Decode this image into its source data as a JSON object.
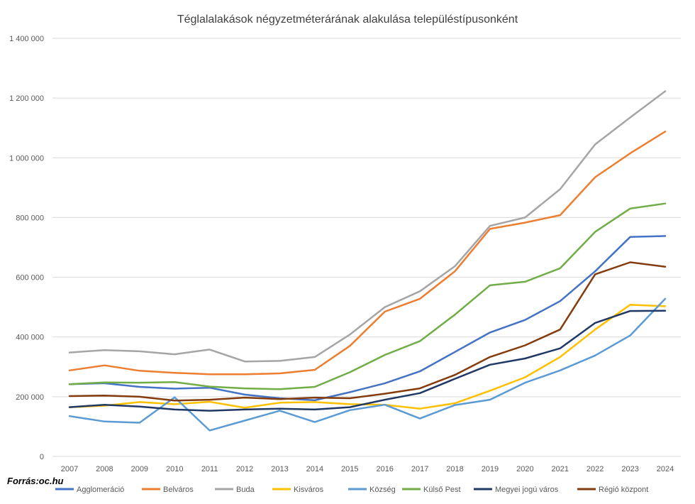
{
  "chart_data": {
    "type": "line",
    "title": "Téglalalakások négyzetméterárának  alakulása településtípusonként",
    "source": "Forrás:oc.hu",
    "ylim": [
      0,
      1400000
    ],
    "yticks": [
      0,
      200000,
      400000,
      600000,
      800000,
      1000000,
      1200000,
      1400000
    ],
    "ytick_labels": [
      "0",
      "200 000",
      "400 000",
      "600 000",
      "800 000",
      "1 000 000",
      "1 200 000",
      "1 400 000"
    ],
    "grid": true,
    "legend_position": "bottom",
    "x": [
      "2007",
      "2008",
      "2009",
      "2010",
      "2011",
      "2012",
      "2013",
      "2014",
      "2015",
      "2016",
      "2017",
      "2018",
      "2019",
      "2020",
      "2021",
      "2022",
      "2023",
      "2024"
    ],
    "series": [
      {
        "name": "Agglomeráció",
        "color": "#4472C4",
        "values": [
          242000,
          245000,
          233000,
          227000,
          230000,
          207000,
          195000,
          188000,
          215000,
          245000,
          285000,
          350000,
          415000,
          457000,
          520000,
          620000,
          735000,
          738000
        ]
      },
      {
        "name": "Belváros",
        "color": "#ED7D31",
        "values": [
          288000,
          305000,
          287000,
          280000,
          275000,
          275000,
          278000,
          290000,
          370000,
          485000,
          528000,
          620000,
          762000,
          783000,
          808000,
          935000,
          1015000,
          1088000
        ]
      },
      {
        "name": "Buda",
        "color": "#A5A5A5",
        "values": [
          348000,
          356000,
          352000,
          342000,
          358000,
          318000,
          320000,
          333000,
          408000,
          500000,
          553000,
          637000,
          772000,
          800000,
          895000,
          1045000,
          1135000,
          1223000
        ]
      },
      {
        "name": "Kisváros",
        "color": "#FFC000",
        "values": [
          165000,
          170000,
          182000,
          175000,
          183000,
          163000,
          180000,
          182000,
          175000,
          173000,
          160000,
          178000,
          220000,
          265000,
          333000,
          425000,
          508000,
          503000
        ]
      },
      {
        "name": "Község",
        "color": "#5B9BD5",
        "values": [
          135000,
          117000,
          113000,
          198000,
          87000,
          120000,
          153000,
          115000,
          155000,
          173000,
          127000,
          172000,
          190000,
          247000,
          288000,
          338000,
          405000,
          528000
        ]
      },
      {
        "name": "Külső Pest",
        "color": "#70AD47",
        "values": [
          242000,
          248000,
          247000,
          249000,
          234000,
          228000,
          225000,
          233000,
          282000,
          340000,
          386000,
          475000,
          573000,
          585000,
          630000,
          752000,
          830000,
          847000
        ]
      },
      {
        "name": "Megyei jogú város",
        "color": "#1F3864",
        "values": [
          165000,
          173000,
          167000,
          157000,
          153000,
          157000,
          160000,
          157000,
          165000,
          190000,
          212000,
          260000,
          307000,
          328000,
          362000,
          447000,
          487000,
          488000
        ]
      },
      {
        "name": "Régió központ",
        "color": "#843C0C",
        "values": [
          202000,
          204000,
          200000,
          187000,
          190000,
          197000,
          192000,
          197000,
          195000,
          210000,
          228000,
          273000,
          333000,
          372000,
          425000,
          610000,
          650000,
          635000
        ]
      }
    ]
  }
}
